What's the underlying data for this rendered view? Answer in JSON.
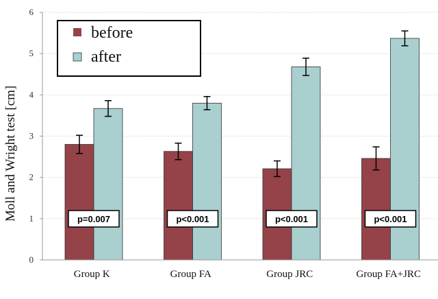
{
  "chart_data": {
    "type": "bar",
    "title": "",
    "xlabel": "",
    "ylabel": "Moll and Wright test [cm]",
    "ylim": [
      0,
      6
    ],
    "yticks": [
      "0",
      "1",
      "2",
      "3",
      "4",
      "5",
      "6"
    ],
    "grid": true,
    "legend_position": "top-left",
    "categories": [
      "Group K",
      "Group FA",
      "Group JRC",
      "Group FA+JRC"
    ],
    "series": [
      {
        "name": "before",
        "color": "#954249",
        "values": [
          2.8,
          2.63,
          2.21,
          2.46
        ],
        "errors": [
          0.22,
          0.2,
          0.19,
          0.28
        ]
      },
      {
        "name": "after",
        "color": "#a9cfcf",
        "values": [
          3.67,
          3.8,
          4.68,
          5.37
        ],
        "errors": [
          0.19,
          0.16,
          0.21,
          0.18
        ]
      }
    ],
    "annotations": [
      "p=0.007",
      "p<0.001",
      "p<0.001",
      "p<0.001"
    ]
  }
}
